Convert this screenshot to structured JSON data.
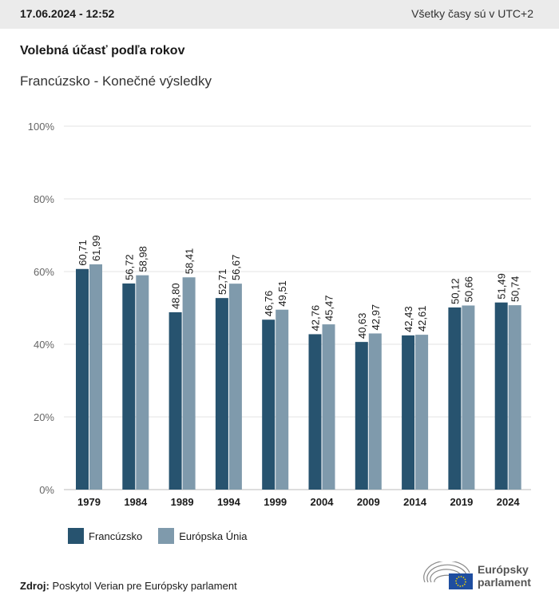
{
  "header": {
    "datetime": "17.06.2024 - 12:52",
    "timezone_note": "Všetky časy sú v UTC+2"
  },
  "title": "Volebná účasť podľa rokov",
  "subtitle": "Francúzsko - Konečné výsledky",
  "chart_data": {
    "type": "bar",
    "categories": [
      "1979",
      "1984",
      "1989",
      "1994",
      "1999",
      "2004",
      "2009",
      "2014",
      "2019",
      "2024"
    ],
    "series": [
      {
        "name": "Francúzsko",
        "color": "#27536f",
        "values": [
          60.71,
          56.72,
          48.8,
          52.71,
          46.76,
          42.76,
          40.63,
          42.43,
          50.12,
          51.49
        ],
        "labels": [
          "60,71",
          "56,72",
          "48,80",
          "52,71",
          "46,76",
          "42,76",
          "40,63",
          "42,43",
          "50,12",
          "51,49"
        ]
      },
      {
        "name": "Európska Únia",
        "color": "#7f9aac",
        "values": [
          61.99,
          58.98,
          58.41,
          56.67,
          49.51,
          45.47,
          42.97,
          42.61,
          50.66,
          50.74
        ],
        "labels": [
          "61,99",
          "58,98",
          "58,41",
          "56,67",
          "49,51",
          "45,47",
          "42,97",
          "42,61",
          "50,66",
          "50,74"
        ]
      }
    ],
    "ylim": [
      0,
      100
    ],
    "yticks": [
      "0%",
      "20%",
      "40%",
      "60%",
      "80%",
      "100%"
    ],
    "grid": true,
    "legend": "bottom-left"
  },
  "source": {
    "label": "Zdroj:",
    "text": "Poskytol Verian pre Európsky parlament"
  },
  "logo": {
    "line1": "Európsky",
    "line2": "parlament"
  }
}
